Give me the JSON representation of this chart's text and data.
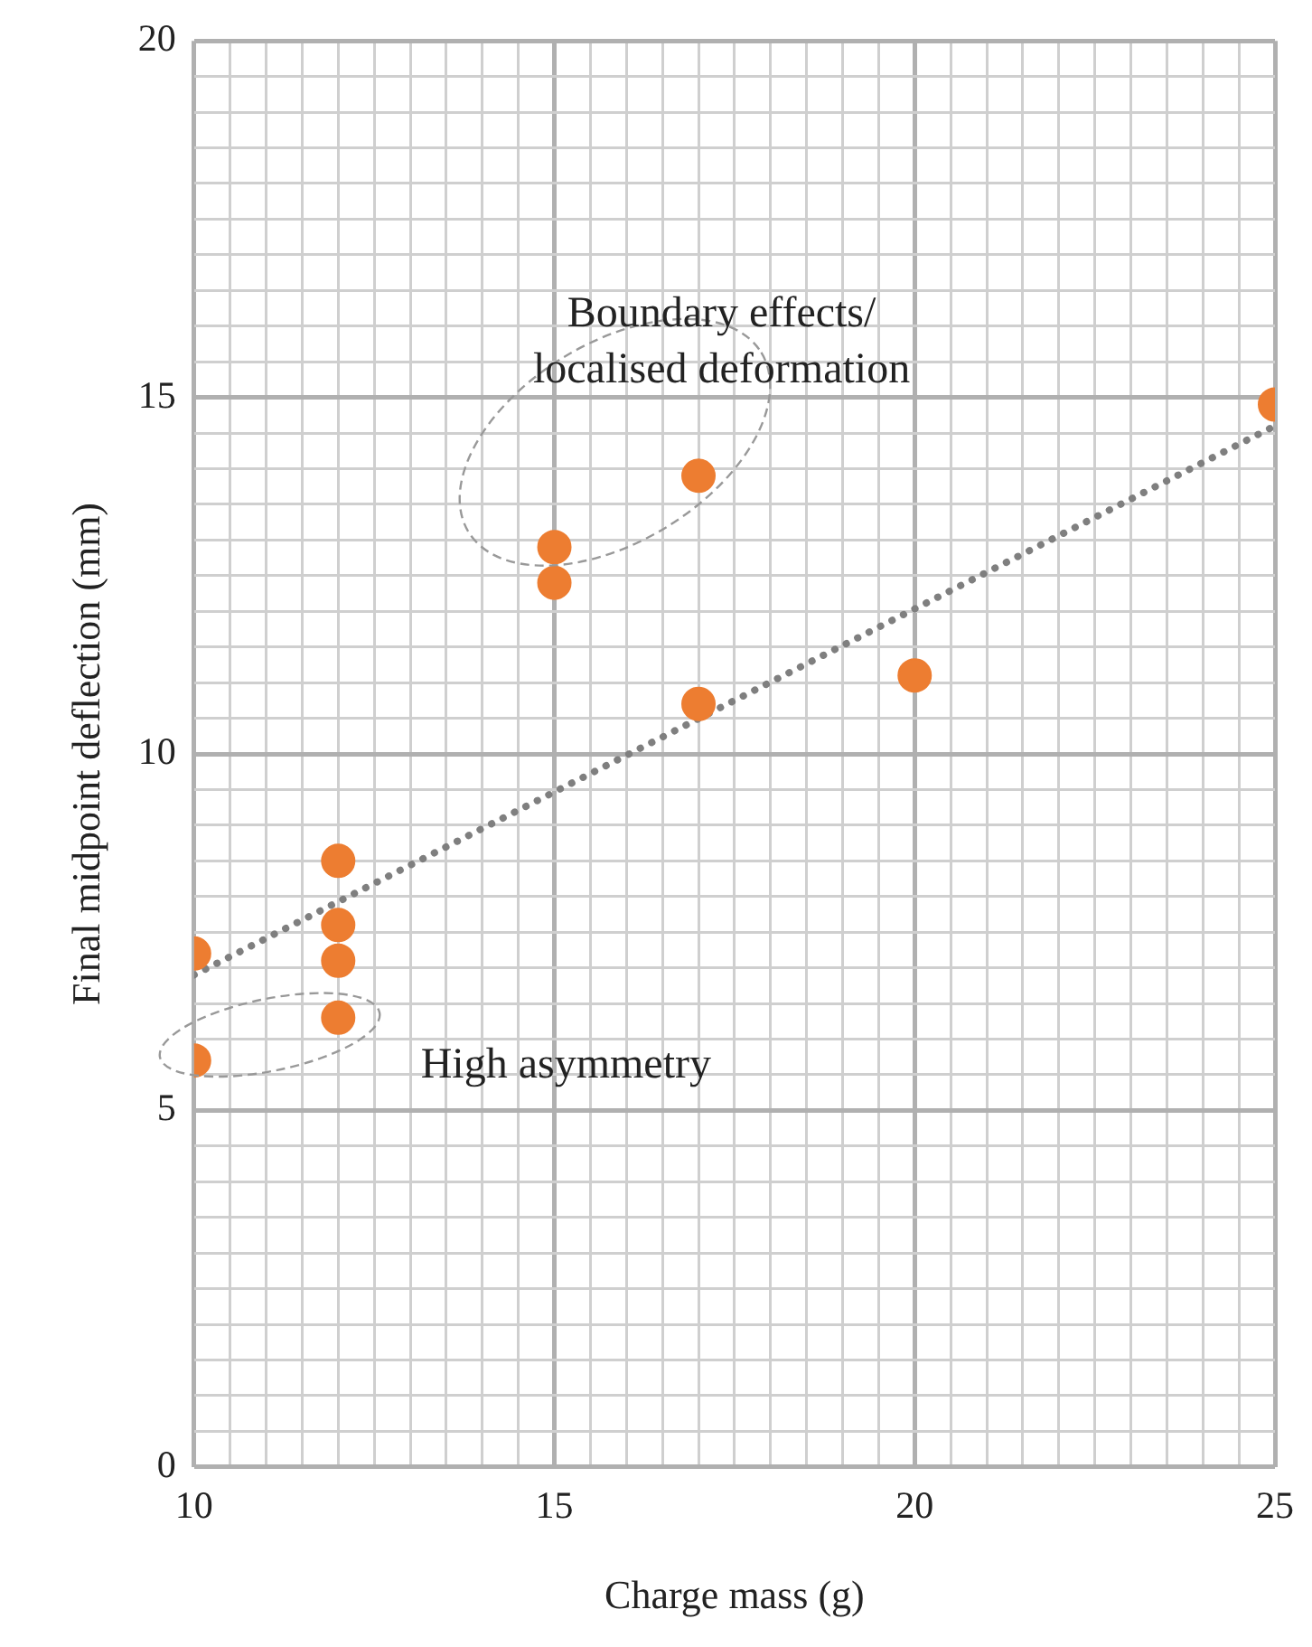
{
  "chart_data": {
    "type": "scatter",
    "xlabel": "Charge mass (g)",
    "ylabel": "Final midpoint deflection (mm)",
    "xlim": [
      10,
      25
    ],
    "ylim": [
      0,
      20
    ],
    "xticks": [
      10,
      {
        "value": 10.5,
        "label": null
      },
      {
        "value": 11,
        "label": null
      },
      {
        "value": 11.5,
        "label": null
      },
      {
        "value": 12,
        "label": null
      },
      {
        "value": 12.5,
        "label": null
      },
      {
        "value": 13,
        "label": null
      },
      {
        "value": 13.5,
        "label": null
      },
      {
        "value": 14,
        "label": null
      },
      {
        "value": 14.5,
        "label": null
      },
      15,
      {
        "value": 15.5,
        "label": null
      },
      {
        "value": 16,
        "label": null
      },
      {
        "value": 16.5,
        "label": null
      },
      {
        "value": 17,
        "label": null
      },
      {
        "value": 17.5,
        "label": null
      },
      {
        "value": 18,
        "label": null
      },
      {
        "value": 18.5,
        "label": null
      },
      {
        "value": 19,
        "label": null
      },
      {
        "value": 19.5,
        "label": null
      },
      20,
      {
        "value": 20.5,
        "label": null
      },
      {
        "value": 21,
        "label": null
      },
      {
        "value": 21.5,
        "label": null
      },
      {
        "value": 22,
        "label": null
      },
      {
        "value": 22.5,
        "label": null
      },
      {
        "value": 23,
        "label": null
      },
      {
        "value": 23.5,
        "label": null
      },
      {
        "value": 24,
        "label": null
      },
      {
        "value": 24.5,
        "label": null
      },
      25
    ],
    "yticks": [
      0,
      {
        "value": 0.5,
        "label": null
      },
      {
        "value": 1,
        "label": null
      },
      {
        "value": 1.5,
        "label": null
      },
      {
        "value": 2,
        "label": null
      },
      {
        "value": 2.5,
        "label": null
      },
      {
        "value": 3,
        "label": null
      },
      {
        "value": 3.5,
        "label": null
      },
      {
        "value": 4,
        "label": null
      },
      {
        "value": 4.5,
        "label": null
      },
      5,
      {
        "value": 5.5,
        "label": null
      },
      {
        "value": 6,
        "label": null
      },
      {
        "value": 6.5,
        "label": null
      },
      {
        "value": 7,
        "label": null
      },
      {
        "value": 7.5,
        "label": null
      },
      {
        "value": 8,
        "label": null
      },
      {
        "value": 8.5,
        "label": null
      },
      {
        "value": 9,
        "label": null
      },
      {
        "value": 9.5,
        "label": null
      },
      10,
      {
        "value": 10.5,
        "label": null
      },
      {
        "value": 11,
        "label": null
      },
      {
        "value": 11.5,
        "label": null
      },
      {
        "value": 12,
        "label": null
      },
      {
        "value": 12.5,
        "label": null
      },
      {
        "value": 13,
        "label": null
      },
      {
        "value": 13.5,
        "label": null
      },
      {
        "value": 14,
        "label": null
      },
      {
        "value": 14.5,
        "label": null
      },
      15,
      {
        "value": 15.5,
        "label": null
      },
      {
        "value": 16,
        "label": null
      },
      {
        "value": 16.5,
        "label": null
      },
      {
        "value": 17,
        "label": null
      },
      {
        "value": 17.5,
        "label": null
      },
      {
        "value": 18,
        "label": null
      },
      {
        "value": 18.5,
        "label": null
      },
      {
        "value": 19,
        "label": null
      },
      {
        "value": 19.5,
        "label": null
      },
      20
    ],
    "grid": true,
    "series": [
      {
        "type": "scatter",
        "color": "#ed7d31",
        "marker": "circle",
        "x": [
          10,
          10,
          12,
          12,
          12,
          12,
          15,
          15,
          17,
          17,
          20,
          25
        ],
        "values": [
          7.2,
          5.7,
          8.5,
          7.6,
          7.1,
          6.3,
          12.9,
          12.4,
          13.9,
          10.7,
          11.1,
          14.9
        ]
      },
      {
        "type": "line",
        "color": "#7f7f7f",
        "marker": "none",
        "line_style": "dotted",
        "x": [
          10,
          25
        ],
        "values": [
          6.9,
          14.6
        ]
      }
    ],
    "annotations": [
      "Boundary effects/\nlocalised deformation",
      "High asymmetry"
    ]
  }
}
